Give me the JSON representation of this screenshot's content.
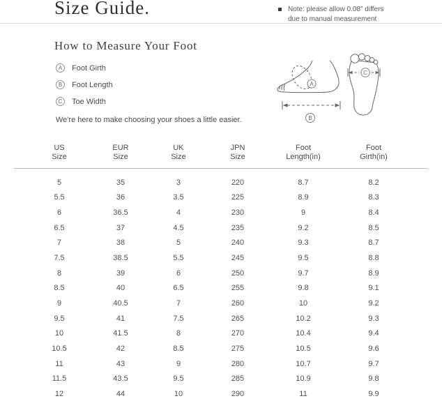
{
  "page": {
    "title": "Size Guide.",
    "note": {
      "bullet_icon": "square-bullet",
      "line1": "Note: please allow 0.08\" differs",
      "line2": "due to manual measurement"
    }
  },
  "measure": {
    "heading": "How to Measure Your Foot",
    "legend": [
      {
        "key": "A",
        "label": "Foot Girth"
      },
      {
        "key": "B",
        "label": "Foot Length"
      },
      {
        "key": "C",
        "label": "Toe Width"
      }
    ],
    "tagline": "We're here to make choosing your shoes a little easier.",
    "illustration_icon": "foot-measurement-diagram"
  },
  "table": {
    "columns": [
      {
        "line1": "US",
        "line2": "Size"
      },
      {
        "line1": "EUR",
        "line2": "Size"
      },
      {
        "line1": "UK",
        "line2": "Size"
      },
      {
        "line1": "JPN",
        "line2": "Size"
      },
      {
        "line1": "Foot",
        "line2": "Length(in)"
      },
      {
        "line1": "Foot",
        "line2": "Girth(in)"
      }
    ],
    "rows": [
      [
        "5",
        "35",
        "3",
        "220",
        "8.7",
        "8.2"
      ],
      [
        "5.5",
        "36",
        "3.5",
        "225",
        "8.9",
        "8.3"
      ],
      [
        "6",
        "36.5",
        "4",
        "230",
        "9",
        "8.4"
      ],
      [
        "6.5",
        "37",
        "4.5",
        "235",
        "9.2",
        "8.5"
      ],
      [
        "7",
        "38",
        "5",
        "240",
        "9.3",
        "8.7"
      ],
      [
        "7.5",
        "38.5",
        "5.5",
        "245",
        "9.5",
        "8.8"
      ],
      [
        "8",
        "39",
        "6",
        "250",
        "9.7",
        "8.9"
      ],
      [
        "8.5",
        "40",
        "6.5",
        "255",
        "9.8",
        "9.1"
      ],
      [
        "9",
        "40.5",
        "7",
        "260",
        "10",
        "9.2"
      ],
      [
        "9.5",
        "41",
        "7.5",
        "265",
        "10.2",
        "9.3"
      ],
      [
        "10",
        "41.5",
        "8",
        "270",
        "10.4",
        "9.4"
      ],
      [
        "10.5",
        "42",
        "8.5",
        "275",
        "10.5",
        "9.6"
      ],
      [
        "11",
        "43",
        "9",
        "280",
        "10.7",
        "9.7"
      ],
      [
        "11.5",
        "43.5",
        "9.5",
        "285",
        "10.9",
        "9.8"
      ],
      [
        "12",
        "44",
        "10",
        "290",
        "11",
        "9.9"
      ]
    ]
  },
  "colors": {
    "title_text": "#2f2f2f",
    "body_text": "#4a4a4a",
    "divider": "#d6d6d6",
    "table_divider": "#bdbdbd",
    "illustration_stroke": "#666666"
  }
}
